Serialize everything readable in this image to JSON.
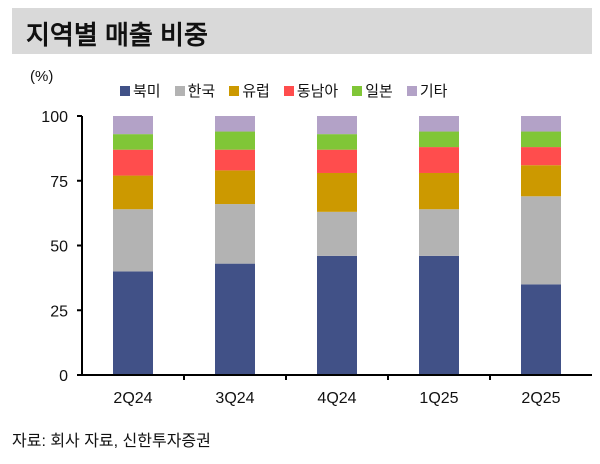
{
  "chart_data": {
    "type": "bar",
    "stacked": true,
    "title": "지역별 매출 비중",
    "ylabel": "(%)",
    "xlabel": "",
    "ylim": [
      0,
      100
    ],
    "yticks": [
      0,
      25,
      50,
      75,
      100
    ],
    "grid": false,
    "legend_position": "top",
    "categories": [
      "2Q24",
      "3Q24",
      "4Q24",
      "1Q25",
      "2Q25"
    ],
    "series": [
      {
        "name": "북미",
        "color": "#415187",
        "values": [
          40,
          43,
          46,
          46,
          35
        ]
      },
      {
        "name": "한국",
        "color": "#b3b3b3",
        "values": [
          24,
          23,
          17,
          18,
          34
        ]
      },
      {
        "name": "유럽",
        "color": "#cc9900",
        "values": [
          13,
          13,
          15,
          14,
          12
        ]
      },
      {
        "name": "동남아",
        "color": "#ff4d4d",
        "values": [
          10,
          8,
          9,
          10,
          7
        ]
      },
      {
        "name": "일본",
        "color": "#80c637",
        "values": [
          6,
          7,
          6,
          6,
          6
        ]
      },
      {
        "name": "기타",
        "color": "#b3a2c7",
        "values": [
          7,
          6,
          7,
          6,
          6
        ]
      }
    ]
  },
  "source": "자료: 회사 자료, 신한투자증권"
}
